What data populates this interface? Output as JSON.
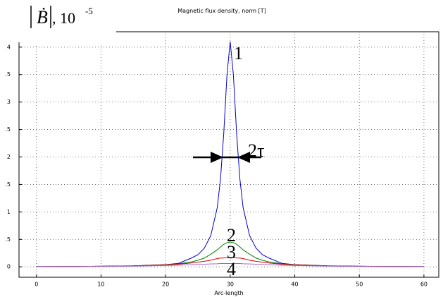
{
  "chart_data": {
    "type": "line",
    "title": "Magnetic flux density, norm [T]",
    "x_label": "Arc-length",
    "y_label": {
      "symbol": "Ḃ",
      "unit": ", 10",
      "exponent": "-5"
    },
    "annotations": [
      "2τ"
    ],
    "x": [
      0,
      5,
      10,
      15,
      20,
      22,
      24,
      25,
      26,
      27,
      28,
      28.5,
      29,
      29.5,
      30,
      30.5,
      31,
      31.5,
      32,
      33,
      34,
      35,
      36,
      38,
      40,
      45,
      50,
      55,
      60
    ],
    "series": [
      {
        "name": "1",
        "color": "#0000cc",
        "values": [
          0.005,
          0.007,
          0.01,
          0.018,
          0.04,
          0.063,
          0.16,
          0.22,
          0.34,
          0.57,
          1.08,
          1.6,
          2.42,
          3.49,
          4.1,
          3.49,
          2.42,
          1.6,
          1.08,
          0.57,
          0.34,
          0.22,
          0.16,
          0.063,
          0.04,
          0.018,
          0.01,
          0.007,
          0.005
        ]
      },
      {
        "name": "2",
        "color": "#008000",
        "values": [
          0.005,
          0.006,
          0.01,
          0.017,
          0.038,
          0.056,
          0.09,
          0.12,
          0.16,
          0.23,
          0.31,
          0.36,
          0.41,
          0.44,
          0.45,
          0.44,
          0.41,
          0.36,
          0.31,
          0.23,
          0.16,
          0.12,
          0.09,
          0.056,
          0.038,
          0.017,
          0.01,
          0.006,
          0.005
        ]
      },
      {
        "name": "3",
        "color": "#dd0000",
        "values": [
          0.004,
          0.006,
          0.01,
          0.017,
          0.034,
          0.048,
          0.07,
          0.085,
          0.1,
          0.12,
          0.15,
          0.16,
          0.16,
          0.17,
          0.17,
          0.17,
          0.16,
          0.16,
          0.15,
          0.12,
          0.1,
          0.085,
          0.07,
          0.048,
          0.034,
          0.017,
          0.01,
          0.006,
          0.004
        ]
      },
      {
        "name": "4",
        "color": "#9966cc",
        "values": [
          0.004,
          0.005,
          0.008,
          0.013,
          0.024,
          0.03,
          0.038,
          0.043,
          0.048,
          0.053,
          0.056,
          0.06,
          0.06,
          0.06,
          0.06,
          0.06,
          0.06,
          0.06,
          0.056,
          0.053,
          0.048,
          0.043,
          0.038,
          0.03,
          0.024,
          0.013,
          0.008,
          0.005,
          0.004
        ]
      }
    ],
    "xlim": [
      -2.7,
      62.3
    ],
    "ylim": [
      -0.19,
      4.28
    ],
    "xticks": [
      0,
      10,
      20,
      30,
      40,
      50,
      60
    ],
    "yticks": [
      0,
      {
        "value": 0.5,
        "label": ".5"
      },
      1,
      {
        "value": 1.5,
        "label": ".5"
      },
      2,
      {
        "value": 2.5,
        "label": ".5"
      },
      3,
      {
        "value": 3.5,
        "label": ".5"
      },
      4
    ],
    "grid": true
  }
}
